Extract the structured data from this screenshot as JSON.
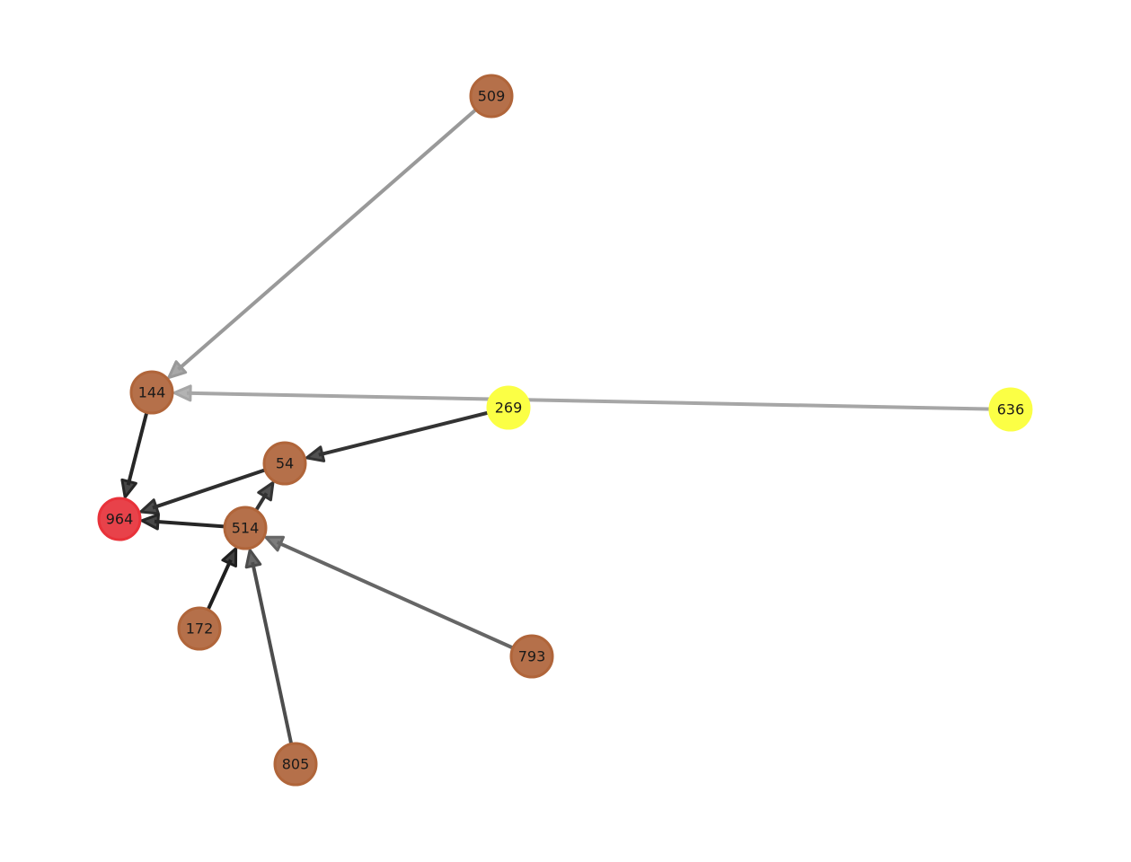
{
  "nodes": [
    {
      "id": "n509",
      "label": "509",
      "color": "#b5704a",
      "stroke": "#b0653a"
    },
    {
      "id": "n144",
      "label": "144",
      "color": "#b5704a",
      "stroke": "#b0653a"
    },
    {
      "id": "n269",
      "label": "269",
      "color": "#fbff45",
      "stroke": "#fbff45"
    },
    {
      "id": "n636",
      "label": "636",
      "color": "#fbff45",
      "stroke": "#fbff45"
    },
    {
      "id": "n54",
      "label": "54",
      "color": "#b5704a",
      "stroke": "#b0653a"
    },
    {
      "id": "n964",
      "label": "964",
      "color": "#e8424a",
      "stroke": "#e8323a"
    },
    {
      "id": "n514",
      "label": "514",
      "color": "#b5704a",
      "stroke": "#b0653a"
    },
    {
      "id": "n172",
      "label": "172",
      "color": "#b5704a",
      "stroke": "#b0653a"
    },
    {
      "id": "n793",
      "label": "793",
      "color": "#b5704a",
      "stroke": "#b0653a"
    },
    {
      "id": "n805",
      "label": "805",
      "color": "#b5704a",
      "stroke": "#b0653a"
    }
  ],
  "edges": [
    {
      "from": "n509",
      "to": "n144",
      "color": "#999999"
    },
    {
      "from": "n636",
      "to": "n144",
      "color": "#a6a6a6"
    },
    {
      "from": "n269",
      "to": "n54",
      "color": "#333333"
    },
    {
      "from": "n144",
      "to": "n964",
      "color": "#262626"
    },
    {
      "from": "n54",
      "to": "n964",
      "color": "#2e2e2e"
    },
    {
      "from": "n514",
      "to": "n964",
      "color": "#262626"
    },
    {
      "from": "n514",
      "to": "n54",
      "color": "#333333"
    },
    {
      "from": "n172",
      "to": "n514",
      "color": "#1f1f1f"
    },
    {
      "from": "n805",
      "to": "n514",
      "color": "#4d4d4d"
    },
    {
      "from": "n793",
      "to": "n514",
      "color": "#666666"
    }
  ]
}
